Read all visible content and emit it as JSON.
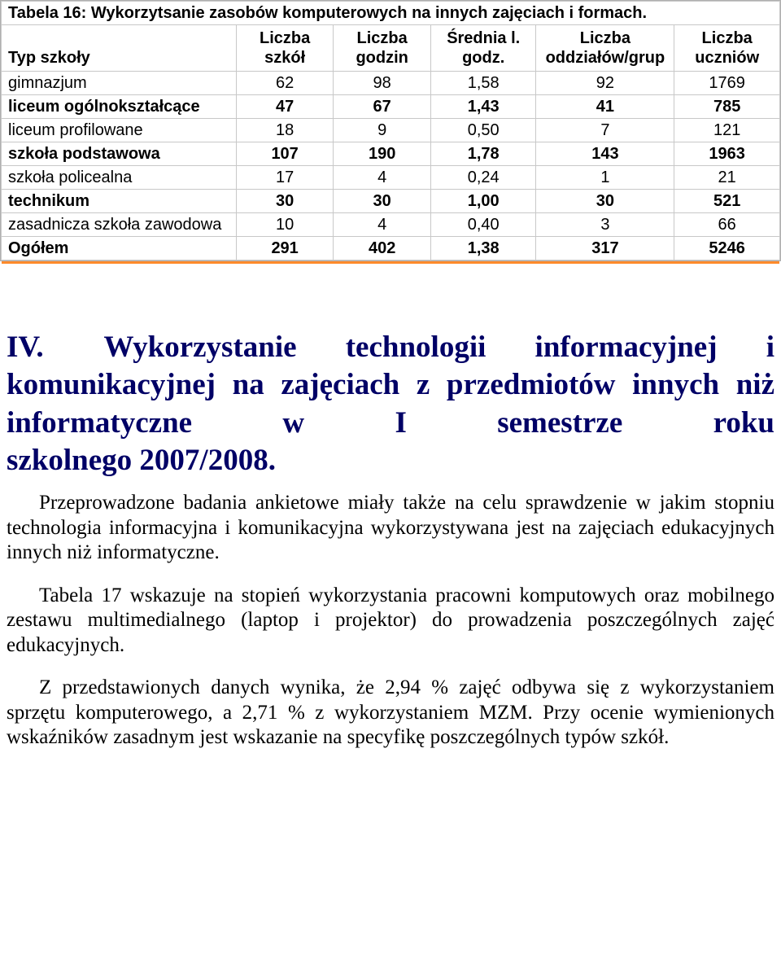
{
  "table": {
    "title": "Tabela 16: Wykorzytsanie zasobów komputerowych na innych zajęciach i formach.",
    "columns": [
      "Typ szkoły",
      "Liczba szkół",
      "Liczba godzin",
      "Średnia l. godz.",
      "Liczba oddziałów/grup",
      "Liczba uczniów"
    ],
    "rows": [
      {
        "label": "gimnazjum",
        "v": [
          "62",
          "98",
          "1,58",
          "92",
          "1769"
        ],
        "bold": false
      },
      {
        "label": "liceum ogólnokształcące",
        "v": [
          "47",
          "67",
          "1,43",
          "41",
          "785"
        ],
        "bold": true
      },
      {
        "label": "liceum profilowane",
        "v": [
          "18",
          "9",
          "0,50",
          "7",
          "121"
        ],
        "bold": false
      },
      {
        "label": "szkoła podstawowa",
        "v": [
          "107",
          "190",
          "1,78",
          "143",
          "1963"
        ],
        "bold": true
      },
      {
        "label": "szkoła policealna",
        "v": [
          "17",
          "4",
          "0,24",
          "1",
          "21"
        ],
        "bold": false
      },
      {
        "label": "technikum",
        "v": [
          "30",
          "30",
          "1,00",
          "30",
          "521"
        ],
        "bold": true
      },
      {
        "label": "zasadnicza szkoła zawodowa",
        "v": [
          "10",
          "4",
          "0,40",
          "3",
          "66"
        ],
        "bold": false
      },
      {
        "label": "Ogółem",
        "v": [
          "291",
          "402",
          "1,38",
          "317",
          "5246"
        ],
        "bold": true
      }
    ],
    "col_widths": [
      "290px",
      "120px",
      "120px",
      "130px",
      "170px",
      "130px"
    ],
    "border_color": "#c8c8c8",
    "accent_color": "#ff8a2a"
  },
  "heading": {
    "number": "IV.",
    "text_lines": [
      "Wykorzystanie technologii",
      "informacyjnej i komunikacyjnej na",
      "zajęciach z przedmiotów innych niż",
      "informatyczne w I semestrze roku"
    ],
    "last_line": "szkolnego 2007/2008.",
    "color": "#000066"
  },
  "paragraphs": [
    "Przeprowadzone badania ankietowe miały także na celu sprawdzenie w jakim stopniu technologia informacyjna i komunikacyjna wykorzystywana jest na zajęciach edukacyjnych innych niż informatyczne.",
    "Tabela 17 wskazuje na stopień wykorzystania pracowni komputowych oraz mobilnego zestawu multimedialnego (laptop i projektor) do prowadzenia poszczególnych zajęć edukacyjnych.",
    "Z przedstawionych danych wynika, że 2,94 % zajęć odbywa się z wykorzystaniem sprzętu komputerowego, a 2,71 % z wykorzystaniem MZM. Przy ocenie wymienionych wskaźników zasadnym jest wskazanie na specyfikę poszczególnych typów szkół."
  ]
}
